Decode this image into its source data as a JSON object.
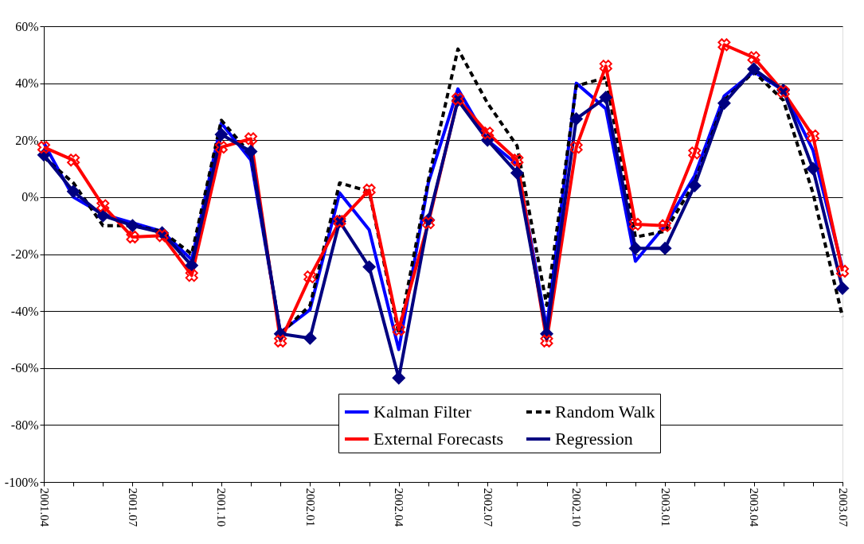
{
  "chart_data": {
    "type": "line",
    "categories": [
      "2001.04",
      null,
      null,
      "2001.07",
      null,
      null,
      "2001.10",
      null,
      null,
      "2002.01",
      null,
      null,
      "2002.04",
      null,
      null,
      "2002.07",
      null,
      null,
      "2002.10",
      null,
      null,
      "2003.01",
      null,
      null,
      "2003.04",
      null,
      null,
      "2003.07"
    ],
    "ylim": [
      -100,
      60
    ],
    "yticks": [
      {
        "value": -100,
        "label": "-100%"
      },
      {
        "value": -80,
        "label": "-80%"
      },
      {
        "value": -60,
        "label": "-60%"
      },
      {
        "value": -40,
        "label": "-40%"
      },
      {
        "value": -20,
        "label": "-20%"
      },
      {
        "value": 0,
        "label": "0%"
      },
      {
        "value": 20,
        "label": "20%"
      },
      {
        "value": 40,
        "label": "40%"
      },
      {
        "value": 60,
        "label": "60%"
      }
    ],
    "grid": "y",
    "legend": "bottom right",
    "series": [
      {
        "name": "Kalman Filter",
        "color": "#0000ff",
        "line_style": "solid",
        "marker": "none",
        "values": [
          19,
          0,
          -6,
          -9,
          -12,
          -22,
          26,
          13,
          -47.5,
          -39.5,
          1.5,
          -11.5,
          -53.5,
          5,
          38,
          20,
          11.5,
          -46,
          40,
          31,
          -22.5,
          -10,
          7.5,
          35.5,
          44,
          37.5,
          16.5,
          -25
        ]
      },
      {
        "name": "Random Walk",
        "color": "#000000",
        "line_style": "dashed",
        "marker": "none",
        "values": [
          14,
          5,
          -10,
          -10,
          -12,
          -20,
          27,
          15,
          -48,
          -38,
          5,
          2,
          -48,
          6,
          52,
          33,
          18,
          -38,
          39,
          42,
          -14,
          -12,
          5,
          34,
          44,
          34,
          1.5,
          -42
        ]
      },
      {
        "name": "External Forecasts",
        "color": "#ff0000",
        "line_style": "solid",
        "marker": "cross",
        "values": [
          17.5,
          13,
          -3,
          -14,
          -13.5,
          -27.5,
          17.5,
          20.5,
          -50.5,
          -28,
          -8.5,
          2.5,
          -46.5,
          -9,
          34.5,
          22.5,
          13,
          -50.5,
          17.5,
          46,
          -9.5,
          -10,
          15.5,
          53.5,
          49,
          37,
          21.5,
          -26
        ]
      },
      {
        "name": "Regression",
        "color": "#000080",
        "line_style": "solid",
        "marker": "diamond",
        "values": [
          14.8,
          2,
          -6.5,
          -10,
          -12.5,
          -24,
          22,
          16,
          -48,
          -49.5,
          -8.5,
          -24.5,
          -63.5,
          -8,
          34,
          20,
          8.5,
          -48,
          27.5,
          35,
          -18,
          -18,
          4,
          33,
          45,
          37.5,
          10,
          -32
        ]
      }
    ]
  }
}
